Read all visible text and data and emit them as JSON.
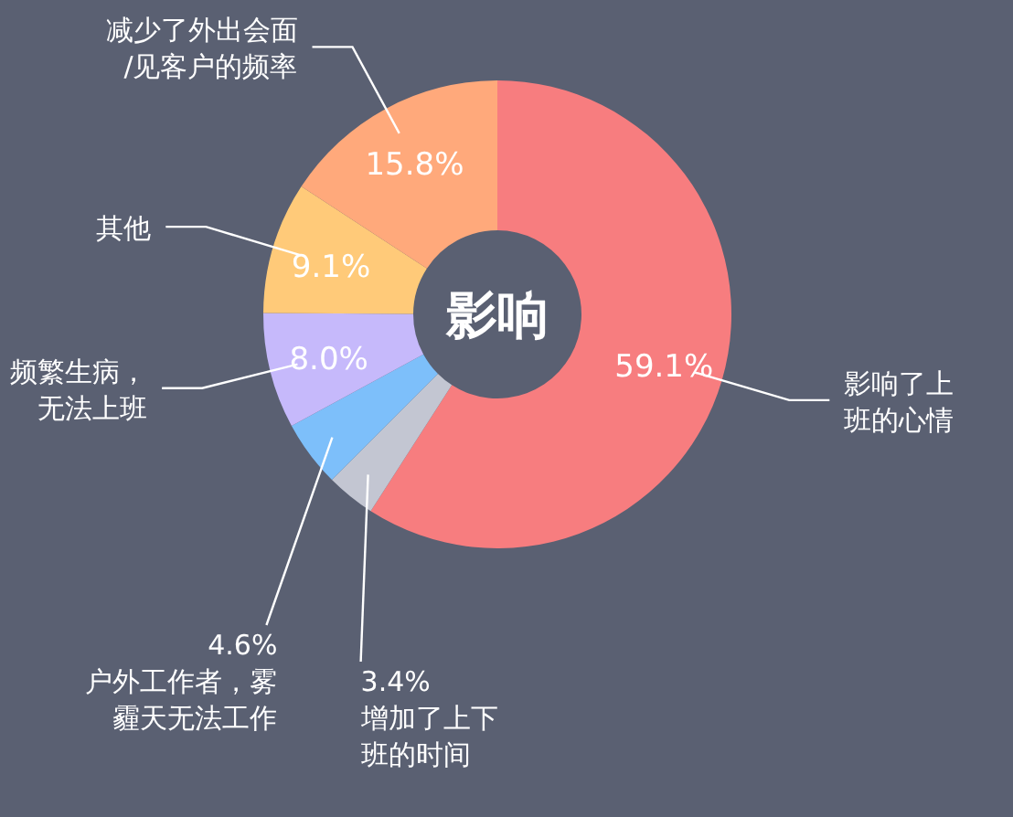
{
  "chart_data": {
    "type": "donut",
    "title": "影响",
    "categories": [
      "影响了上班的心情",
      "增加了上下班的时间",
      "户外工作者，雾霾天无法工作",
      "频繁生病，无法上班",
      "其他",
      "减少了外出会面/见客户的频率"
    ],
    "values": [
      59.1,
      3.4,
      4.6,
      8.0,
      9.1,
      15.8
    ],
    "value_labels": [
      "59.1%",
      "3.4%",
      "4.6%",
      "8.0%",
      "9.1%",
      "15.8%"
    ],
    "colors": [
      "#f77d7f",
      "#c3c6d2",
      "#7dbffa",
      "#c6b9fb",
      "#ffca79",
      "#ffa97b"
    ]
  }
}
